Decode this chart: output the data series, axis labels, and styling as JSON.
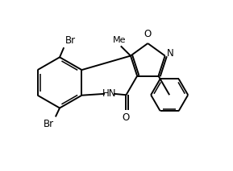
{
  "background": "#ffffff",
  "line_color": "#000000",
  "line_width": 1.4,
  "font_size": 8.5,
  "xlim": [
    0,
    10
  ],
  "ylim": [
    0,
    7.35
  ]
}
